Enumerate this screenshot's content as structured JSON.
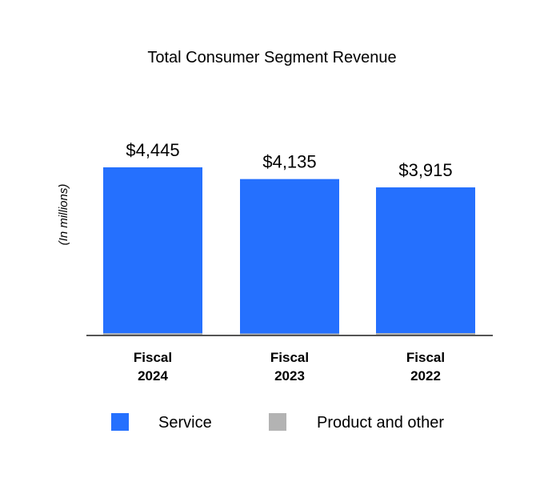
{
  "chart_data": {
    "type": "bar",
    "stacked": true,
    "title": "Total Consumer Segment Revenue",
    "ylabel": "(In millions)",
    "xlabel": "",
    "categories": [
      [
        "Fiscal",
        "2024"
      ],
      [
        "Fiscal",
        "2023"
      ],
      [
        "Fiscal",
        "2022"
      ]
    ],
    "totals_labels": [
      "$4,445",
      "$4,135",
      "$3,915"
    ],
    "totals": [
      4445,
      4135,
      3915
    ],
    "series": [
      {
        "name": "Service",
        "color": "#2570fe",
        "values": [
          4385,
          4083,
          3852
        ]
      },
      {
        "name": "Product and other",
        "color": "#b3b3b3",
        "values": [
          60,
          52,
          63
        ]
      }
    ],
    "ylim": [
      0,
      5000
    ],
    "grid": false,
    "legend_position": "bottom"
  }
}
